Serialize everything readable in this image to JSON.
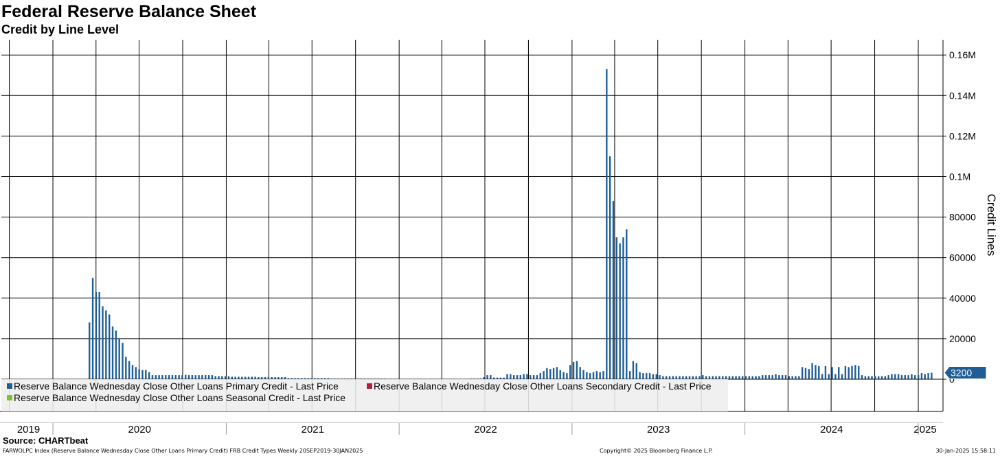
{
  "header": {
    "title": "Federal Reserve Balance Sheet",
    "subtitle": "Credit by Line Level"
  },
  "footer": {
    "source": "Source: CHARTbeat",
    "description": "FARWOLPC Index (Reserve Balance Wednesday Close Other Loans Primary Credit) FRB Credit Types  Weekly 20SEP2019-30JAN2025",
    "copyright": "Copyright© 2025 Bloomberg Finance L.P.",
    "timestamp": "30-Jan-2025 15:58:11"
  },
  "chart_data": {
    "type": "bar",
    "title": "Federal Reserve Balance Sheet",
    "subtitle": "Credit by Line Level",
    "ylabel": "Credit Lines",
    "xlabel": "",
    "ylim": [
      -15000,
      166000
    ],
    "yticks": [
      0,
      20000,
      40000,
      60000,
      80000,
      100000,
      120000,
      140000,
      160000
    ],
    "ytick_labels": [
      "0",
      "20000",
      "40000",
      "60000",
      "80000",
      "0.1M",
      "0.12M",
      "0.14M",
      "0.16M"
    ],
    "xaxis_year_labels": [
      "2019",
      "2020",
      "2021",
      "2022",
      "2023",
      "2024",
      "2025"
    ],
    "xlim_dates": [
      "2019-09-20",
      "2025-01-30"
    ],
    "grid": true,
    "legend_position": "bottom-left",
    "last_value_label": "3200",
    "series": [
      {
        "name": "Reserve Balance Wednesday Close Other Loans Primary Credit - Last Price",
        "color": "#1f5d95",
        "points": [
          [
            "2020-03-18",
            28000
          ],
          [
            "2020-03-25",
            50000
          ],
          [
            "2020-04-01",
            43000
          ],
          [
            "2020-04-08",
            43000
          ],
          [
            "2020-04-15",
            36000
          ],
          [
            "2020-04-22",
            34000
          ],
          [
            "2020-04-29",
            32000
          ],
          [
            "2020-05-06",
            26000
          ],
          [
            "2020-05-13",
            24000
          ],
          [
            "2020-05-20",
            20000
          ],
          [
            "2020-05-27",
            18000
          ],
          [
            "2020-06-03",
            11000
          ],
          [
            "2020-06-10",
            9000
          ],
          [
            "2020-06-17",
            7000
          ],
          [
            "2020-06-24",
            6000
          ],
          [
            "2020-07-01",
            5000
          ],
          [
            "2020-07-08",
            4500
          ],
          [
            "2020-07-15",
            4500
          ],
          [
            "2020-07-22",
            3500
          ],
          [
            "2020-08-05",
            2000
          ],
          [
            "2020-09-02",
            2000
          ],
          [
            "2020-10-07",
            2200
          ],
          [
            "2020-11-04",
            2000
          ],
          [
            "2020-12-02",
            2000
          ],
          [
            "2021-01-06",
            1500
          ],
          [
            "2021-03-03",
            1200
          ],
          [
            "2021-05-05",
            1000
          ],
          [
            "2021-08-04",
            500
          ],
          [
            "2021-11-03",
            300
          ],
          [
            "2021-12-01",
            300
          ],
          [
            "2022-03-02",
            200
          ],
          [
            "2022-06-01",
            300
          ],
          [
            "2022-06-29",
            1000
          ],
          [
            "2022-07-06",
            2000
          ],
          [
            "2022-07-13",
            2000
          ],
          [
            "2022-07-20",
            800
          ],
          [
            "2022-08-17",
            2500
          ],
          [
            "2022-08-24",
            2500
          ],
          [
            "2022-08-31",
            2000
          ],
          [
            "2022-09-14",
            2000
          ],
          [
            "2022-09-21",
            2500
          ],
          [
            "2022-09-28",
            2500
          ],
          [
            "2022-10-05",
            2000
          ],
          [
            "2022-10-26",
            3000
          ],
          [
            "2022-11-02",
            4000
          ],
          [
            "2022-11-09",
            5500
          ],
          [
            "2022-11-16",
            5000
          ],
          [
            "2022-11-23",
            5500
          ],
          [
            "2022-11-30",
            6000
          ],
          [
            "2022-12-07",
            4500
          ],
          [
            "2022-12-14",
            3500
          ],
          [
            "2022-12-21",
            3000
          ],
          [
            "2022-12-28",
            7000
          ],
          [
            "2023-01-04",
            8500
          ],
          [
            "2023-01-11",
            9000
          ],
          [
            "2023-01-18",
            6000
          ],
          [
            "2023-01-25",
            4500
          ],
          [
            "2023-02-01",
            3500
          ],
          [
            "2023-02-08",
            3000
          ],
          [
            "2023-02-15",
            3500
          ],
          [
            "2023-02-22",
            4000
          ],
          [
            "2023-03-01",
            3500
          ],
          [
            "2023-03-08",
            4000
          ],
          [
            "2023-03-15",
            153000
          ],
          [
            "2023-03-22",
            110000
          ],
          [
            "2023-03-29",
            88000
          ],
          [
            "2023-04-05",
            70000
          ],
          [
            "2023-04-12",
            67000
          ],
          [
            "2023-04-19",
            70000
          ],
          [
            "2023-04-26",
            74000
          ],
          [
            "2023-05-03",
            4000
          ],
          [
            "2023-05-10",
            9000
          ],
          [
            "2023-05-17",
            8000
          ],
          [
            "2023-05-24",
            3500
          ],
          [
            "2023-05-31",
            3000
          ],
          [
            "2023-06-07",
            3000
          ],
          [
            "2023-06-14",
            3000
          ],
          [
            "2023-06-21",
            2500
          ],
          [
            "2023-06-28",
            2500
          ],
          [
            "2023-07-05",
            2000
          ],
          [
            "2023-08-02",
            1500
          ],
          [
            "2023-09-06",
            1500
          ],
          [
            "2023-10-04",
            2000
          ],
          [
            "2023-11-01",
            1500
          ],
          [
            "2023-12-06",
            1500
          ],
          [
            "2024-01-03",
            1500
          ],
          [
            "2024-02-07",
            2000
          ],
          [
            "2024-03-06",
            2500
          ],
          [
            "2024-03-27",
            2000
          ],
          [
            "2024-04-03",
            1500
          ],
          [
            "2024-04-17",
            1500
          ],
          [
            "2024-05-01",
            6000
          ],
          [
            "2024-05-08",
            5500
          ],
          [
            "2024-05-15",
            5000
          ],
          [
            "2024-05-22",
            8000
          ],
          [
            "2024-05-29",
            7000
          ],
          [
            "2024-06-05",
            6500
          ],
          [
            "2024-06-19",
            6500
          ],
          [
            "2024-07-03",
            6000
          ],
          [
            "2024-07-17",
            6000
          ],
          [
            "2024-07-31",
            6500
          ],
          [
            "2024-08-07",
            6000
          ],
          [
            "2024-08-14",
            6500
          ],
          [
            "2024-08-21",
            7000
          ],
          [
            "2024-08-28",
            6500
          ],
          [
            "2024-09-04",
            2000
          ],
          [
            "2024-09-18",
            1500
          ],
          [
            "2024-10-02",
            1500
          ],
          [
            "2024-10-16",
            1500
          ],
          [
            "2024-10-30",
            2000
          ],
          [
            "2024-11-06",
            2500
          ],
          [
            "2024-11-20",
            2500
          ],
          [
            "2024-12-04",
            2000
          ],
          [
            "2024-12-18",
            2500
          ],
          [
            "2024-12-25",
            2000
          ],
          [
            "2025-01-08",
            3000
          ],
          [
            "2025-01-15",
            2500
          ],
          [
            "2025-01-22",
            3000
          ],
          [
            "2025-01-29",
            3200
          ]
        ]
      },
      {
        "name": "Reserve Balance Wednesday Close Other Loans Secondary Credit - Last Price",
        "color": "#b4203a",
        "points": []
      },
      {
        "name": "Reserve Balance Wednesday Close Other Loans Seasonal Credit - Last Price",
        "color": "#7cc42c",
        "points": []
      }
    ]
  }
}
